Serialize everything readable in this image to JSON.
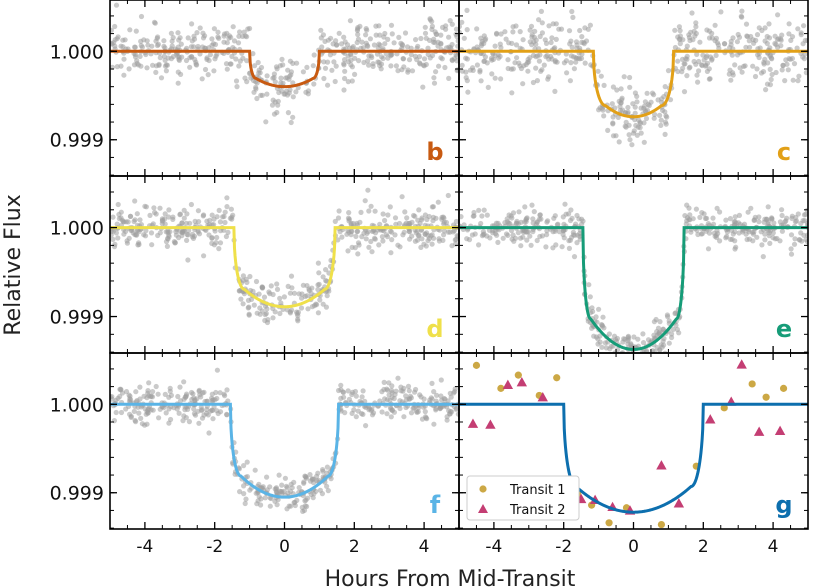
{
  "figure": {
    "ylabel": "Relative Flux",
    "xlabel": "Hours From Mid-Transit"
  },
  "axes": {
    "x_ticks": [
      "-4",
      "-2",
      "0",
      "2",
      "4"
    ],
    "x_tick_values": [
      -4,
      -2,
      0,
      2,
      4
    ],
    "y_ticks": [
      "1.000",
      "0.999"
    ],
    "y_tick_values": [
      1.0,
      0.999
    ],
    "xlim": [
      -5,
      5
    ],
    "ylim": [
      0.99859,
      1.00058
    ]
  },
  "chart_data": [
    {
      "type": "scatter",
      "panel": "b",
      "color": "#c85a11",
      "transit_half_hours": 1.0,
      "ingress_hours": 0.18,
      "depth": 0.0004,
      "scatter_std": 0.00017,
      "data_color": "#9e9e9e"
    },
    {
      "type": "scatter",
      "panel": "c",
      "color": "#e2a017",
      "transit_half_hours": 1.15,
      "ingress_hours": 0.35,
      "depth": 0.00074,
      "scatter_std": 0.00017,
      "data_color": "#9e9e9e"
    },
    {
      "type": "scatter",
      "panel": "d",
      "color": "#efe04a",
      "transit_half_hours": 1.45,
      "ingress_hours": 0.3,
      "depth": 0.00089,
      "scatter_std": 0.00012,
      "data_color": "#9e9e9e"
    },
    {
      "type": "scatter",
      "panel": "e",
      "color": "#169c78",
      "transit_half_hours": 1.45,
      "ingress_hours": 0.22,
      "depth": 0.00137,
      "scatter_std": 0.00011,
      "data_color": "#9e9e9e"
    },
    {
      "type": "scatter",
      "panel": "f",
      "color": "#5ab4e6",
      "transit_half_hours": 1.55,
      "ingress_hours": 0.3,
      "depth": 0.00105,
      "scatter_std": 0.0001,
      "data_color": "#9e9e9e"
    },
    {
      "type": "scatter",
      "panel": "g",
      "color": "#0d6fae",
      "transit_half_hours": 2.0,
      "ingress_hours": 0.35,
      "depth": 0.00122,
      "legend": [
        {
          "label": "Transit 1",
          "color": "#cca845",
          "marker": "circle"
        },
        {
          "label": "Transit 2",
          "color": "#c43e73",
          "marker": "triangle"
        }
      ],
      "transit1": {
        "x": [
          -4.5,
          -3.8,
          -3.3,
          -2.7,
          -2.2,
          -1.6,
          -1.2,
          -0.7,
          -0.2,
          0.8,
          1.8,
          2.6,
          3.4,
          3.8,
          4.3
        ],
        "y": [
          1.00044,
          1.00018,
          1.00033,
          1.0001,
          1.0003,
          0.99899,
          0.99886,
          0.99866,
          0.99883,
          0.99864,
          0.9993,
          0.99996,
          1.00023,
          1.00008,
          1.00018
        ]
      },
      "transit2": {
        "x": [
          -4.6,
          -4.1,
          -3.6,
          -3.2,
          -2.6,
          -1.5,
          -1.1,
          -0.6,
          -0.1,
          0.8,
          1.3,
          2.2,
          2.8,
          3.1,
          3.6,
          4.2
        ],
        "y": [
          0.99978,
          0.99977,
          1.00022,
          1.00025,
          1.00008,
          0.99893,
          0.99892,
          0.99884,
          0.9988,
          0.99931,
          0.99888,
          0.99983,
          1.00003,
          1.00045,
          0.99969,
          0.9997
        ]
      }
    }
  ]
}
